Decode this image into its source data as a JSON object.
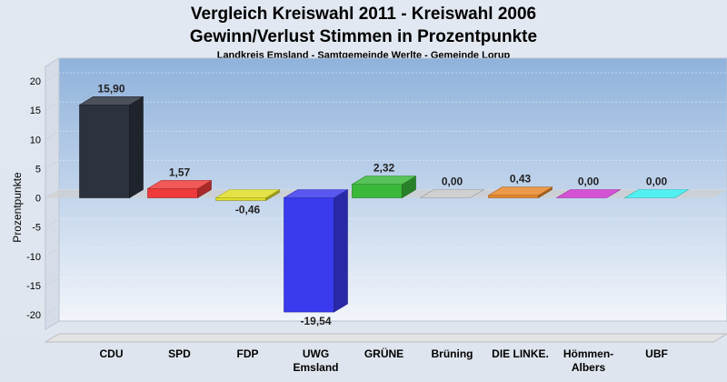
{
  "chart_data": {
    "type": "bar",
    "title": "Vergleich Kreiswahl 2011 - Kreiswahl 2006",
    "subtitle": "Gewinn/Verlust Stimmen in Prozentpunkte",
    "subsubtitle": "Landkreis Emsland - Samtgemeinde Werlte - Gemeinde Lorup",
    "ylabel": "Prozentpunkte",
    "xlabel": "",
    "ylim": [
      -20,
      20
    ],
    "yticks": [
      20,
      15,
      10,
      5,
      0,
      -5,
      -10,
      -15,
      -20
    ],
    "yticks_labels": [
      "20",
      "15",
      "10",
      "5",
      "0",
      "-5",
      "-10",
      "-15",
      "-20"
    ],
    "grid": true,
    "categories": [
      [
        "CDU"
      ],
      [
        "SPD"
      ],
      [
        "FDP"
      ],
      [
        "UWG",
        "Emsland"
      ],
      [
        "GRÜNE"
      ],
      [
        "Brüning"
      ],
      [
        "DIE LINKE."
      ],
      [
        "Hömmen-",
        "Albers"
      ],
      [
        "UBF"
      ]
    ],
    "values": [
      15.9,
      1.57,
      -0.46,
      -19.54,
      2.32,
      0.0,
      0.43,
      0.0,
      0.0
    ],
    "value_labels": [
      "15,90",
      "1,57",
      "-0,46",
      "-19,54",
      "2,32",
      "0,00",
      "0,43",
      "0,00",
      "0,00"
    ],
    "colors": [
      "#2d323f",
      "#ee3a3a",
      "#dede28",
      "#3a3aee",
      "#3ab83a",
      "#c8c8c8",
      "#e8882a",
      "#cc33cc",
      "#33eeee"
    ]
  }
}
